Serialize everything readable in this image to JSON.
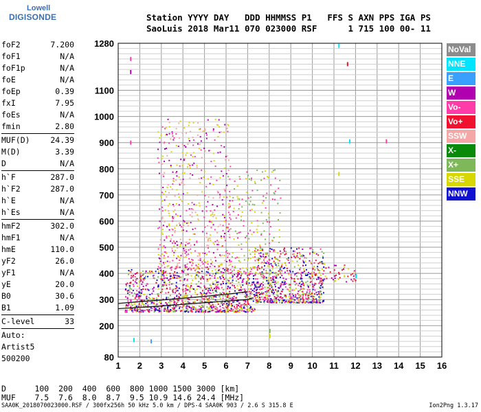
{
  "logo": {
    "top": "Lowell",
    "main": "DIGISONDE"
  },
  "header": {
    "line1": "Station YYYY DAY   DDD HHMMSS P1   FFS S AXN PPS IGA PS",
    "line2": "SaoLuis 2018 Mar11 070 023000 RSF      1 715 100 00- 11"
  },
  "params": [
    {
      "label": "foF2",
      "value": "7.200"
    },
    {
      "label": "foF1",
      "value": "N/A"
    },
    {
      "label": "foF1p",
      "value": "N/A"
    },
    {
      "label": "foE",
      "value": "N/A"
    },
    {
      "label": "foEp",
      "value": "0.39"
    },
    {
      "label": "fxI",
      "value": "7.95"
    },
    {
      "label": "foEs",
      "value": "N/A"
    },
    {
      "label": "fmin",
      "value": "2.80"
    },
    {
      "label": "MUF(D)",
      "value": "24.39"
    },
    {
      "label": "M(D)",
      "value": "3.39"
    },
    {
      "label": "D",
      "value": "N/A"
    },
    {
      "label": "h`F",
      "value": "287.0"
    },
    {
      "label": "h`F2",
      "value": "287.0"
    },
    {
      "label": "h`E",
      "value": "N/A"
    },
    {
      "label": "h`Es",
      "value": "N/A"
    },
    {
      "label": "hmF2",
      "value": "302.0"
    },
    {
      "label": "hmF1",
      "value": "N/A"
    },
    {
      "label": "hmE",
      "value": "110.0"
    },
    {
      "label": "yF2",
      "value": "26.0"
    },
    {
      "label": "yF1",
      "value": "N/A"
    },
    {
      "label": "yE",
      "value": "20.0"
    },
    {
      "label": "B0",
      "value": "30.6"
    },
    {
      "label": "B1",
      "value": "1.09"
    },
    {
      "label": "C-level",
      "value": "33"
    }
  ],
  "auto": {
    "line1": "Auto:",
    "line2": "Artist5",
    "line3": "500200"
  },
  "legend": [
    {
      "label": "NoVal",
      "color": "#8c8c8c"
    },
    {
      "label": "NNE",
      "color": "#00e5ff"
    },
    {
      "label": "E",
      "color": "#3aa0ff"
    },
    {
      "label": "W",
      "color": "#b000b0"
    },
    {
      "label": "Vo-",
      "color": "#ff3ca8"
    },
    {
      "label": "Vo+",
      "color": "#f01030"
    },
    {
      "label": "SSW",
      "color": "#f5a6a6"
    },
    {
      "label": "X-",
      "color": "#0a8a0a"
    },
    {
      "label": "X+",
      "color": "#7fb85a"
    },
    {
      "label": "SSE",
      "color": "#d8d800"
    },
    {
      "label": "NNW",
      "color": "#1010d0"
    }
  ],
  "footer": {
    "d_line": "D      100  200  400  600  800 1000 1500 3000 [km]",
    "muf_line": "MUF    7.5  7.6  8.0  8.7  9.5 10.9 14.6 24.4 [MHz]",
    "file_line": "SAA0K_2018070023000.RSF / 300fx256h 50 kHz 5.0 km / DPS-4 SAA0K 903 / 2.6 S 315.8 E",
    "version": "Ion2Png 1.3.17"
  },
  "chart_data": {
    "type": "scatter",
    "x_axis": {
      "min": 1,
      "max": 16,
      "ticks": [
        1,
        2,
        3,
        4,
        5,
        6,
        7,
        8,
        9,
        10,
        11,
        12,
        13,
        14,
        15,
        16
      ]
    },
    "y_axis": {
      "min": 80,
      "max": 1280,
      "ticks": [
        80,
        200,
        300,
        400,
        500,
        600,
        700,
        800,
        900,
        1000,
        1100,
        1280
      ]
    },
    "grid": true,
    "trace_f2": {
      "x": [
        1.0,
        2.0,
        3.0,
        4.0,
        5.0,
        6.0,
        7.0,
        7.2
      ],
      "y": [
        265,
        270,
        275,
        282,
        288,
        294,
        300,
        305
      ]
    },
    "trace_f2_upper": {
      "x": [
        1.0,
        2.0,
        3.0,
        4.0,
        5.0,
        6.0,
        7.0
      ],
      "y": [
        285,
        292,
        298,
        305,
        312,
        320,
        330
      ]
    },
    "echo_clusters": [
      {
        "x_range": [
          1.3,
          7.3
        ],
        "y_range": [
          255,
          420
        ],
        "density": 0.95,
        "direction_mix": [
          "Vo+",
          "Vo-",
          "W",
          "SSE",
          "NNW",
          "X+"
        ]
      },
      {
        "x_range": [
          7.3,
          10.5
        ],
        "y_range": [
          290,
          500
        ],
        "density": 0.9,
        "direction_mix": [
          "Vo+",
          "Vo-",
          "W",
          "SSE",
          "X+",
          "NNW"
        ]
      },
      {
        "x_range": [
          2.8,
          6.2
        ],
        "y_range": [
          420,
          1000
        ],
        "density": 0.25,
        "direction_mix": [
          "SSE",
          "Vo-",
          "W",
          "SSW"
        ]
      },
      {
        "x_range": [
          6.0,
          8.5
        ],
        "y_range": [
          400,
          800
        ],
        "density": 0.18,
        "direction_mix": [
          "SSE",
          "X+",
          "Vo-"
        ]
      },
      {
        "x_range": [
          10.5,
          12.0
        ],
        "y_range": [
          370,
          440
        ],
        "density": 0.35,
        "direction_mix": [
          "SSE",
          "Vo+",
          "W"
        ]
      }
    ],
    "isolated_points": [
      {
        "x": 1.55,
        "y": 1220,
        "dir": "Vo-"
      },
      {
        "x": 1.55,
        "y": 1170,
        "dir": "W"
      },
      {
        "x": 1.55,
        "y": 900,
        "dir": "Vo-"
      },
      {
        "x": 13.4,
        "y": 905,
        "dir": "Vo-"
      },
      {
        "x": 11.6,
        "y": 1200,
        "dir": "Vo+"
      },
      {
        "x": 11.2,
        "y": 1270,
        "dir": "NNE"
      },
      {
        "x": 11.7,
        "y": 905,
        "dir": "NNE"
      },
      {
        "x": 8.0,
        "y": 180,
        "dir": "X+"
      },
      {
        "x": 8.0,
        "y": 160,
        "dir": "SSE"
      },
      {
        "x": 1.7,
        "y": 145,
        "dir": "NNE"
      },
      {
        "x": 2.5,
        "y": 140,
        "dir": "E"
      },
      {
        "x": 12.0,
        "y": 390,
        "dir": "NNE"
      },
      {
        "x": 11.2,
        "y": 780,
        "dir": "SSE"
      }
    ]
  }
}
